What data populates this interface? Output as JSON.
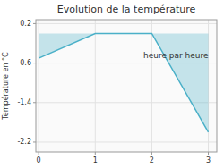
{
  "chart_data": {
    "type": "area",
    "title": "Evolution de la température",
    "y_label": "Température en °C",
    "annotations": [
      {
        "text": "heure par heure",
        "x": 1.85,
        "y": -0.38
      }
    ],
    "x": [
      0,
      1,
      2,
      3
    ],
    "values": [
      -0.5,
      0.0,
      0.0,
      -2.0
    ],
    "color": "#4ab0c8",
    "xlim": [
      -0.05,
      3.15
    ],
    "ylim": [
      -2.4,
      0.28
    ],
    "xticks": [
      0,
      1,
      2,
      3
    ],
    "yticks": [
      0.2,
      -0.6,
      -1.4,
      -2.2
    ],
    "grid": true
  }
}
